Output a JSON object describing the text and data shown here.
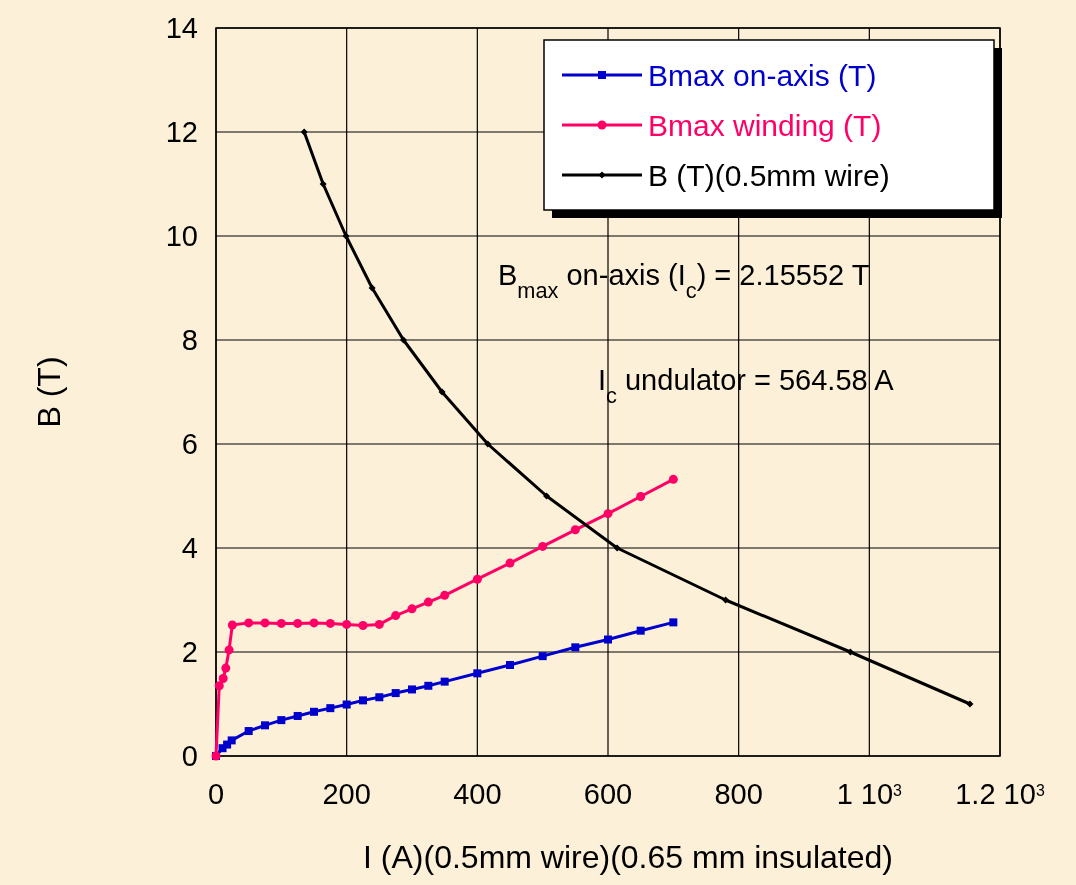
{
  "chart_data": {
    "type": "line",
    "xlabel": "I (A)(0.5mm wire)(0.65 mm insulated)",
    "ylabel": "B (T)",
    "xlim": [
      0,
      1200
    ],
    "ylim": [
      0,
      14
    ],
    "xticks": [
      0,
      200,
      400,
      600,
      800,
      {
        "value": 1000,
        "label": "1 10$^{3}$"
      },
      {
        "value": 1200,
        "label": "1.2 10$^{3}$"
      }
    ],
    "yticks": [
      0,
      2,
      4,
      6,
      8,
      10,
      12,
      14
    ],
    "grid": true,
    "legend": "top right",
    "annotations": [
      "B$_{max}$ on-axis (I$_{c}$) = 2.15552 T",
      "I$_{c}$ undulator = 564.58 A"
    ],
    "series": [
      {
        "name": "Bmax on-axis (T)",
        "color": "#0000cc",
        "marker": "square",
        "x": [
          0,
          10,
          17,
          24,
          50,
          75,
          100,
          125,
          150,
          175,
          200,
          225,
          250,
          275,
          300,
          325,
          350,
          400,
          450,
          500,
          550,
          600,
          650,
          700
        ],
        "values": [
          0,
          0.15,
          0.22,
          0.3,
          0.48,
          0.59,
          0.69,
          0.77,
          0.85,
          0.92,
          0.99,
          1.07,
          1.13,
          1.21,
          1.28,
          1.35,
          1.43,
          1.59,
          1.75,
          1.92,
          2.09,
          2.24,
          2.41,
          2.57
        ]
      },
      {
        "name": "Bmax winding (T)",
        "color": "#ff0066",
        "marker": "circle",
        "x": [
          0,
          5,
          11,
          15,
          20,
          25,
          50,
          75,
          100,
          125,
          150,
          175,
          200,
          225,
          250,
          275,
          300,
          325,
          350,
          400,
          450,
          500,
          550,
          600,
          650,
          700
        ],
        "values": [
          0,
          1.35,
          1.49,
          1.69,
          2.04,
          2.52,
          2.56,
          2.56,
          2.55,
          2.55,
          2.56,
          2.55,
          2.53,
          2.51,
          2.53,
          2.7,
          2.83,
          2.96,
          3.09,
          3.4,
          3.71,
          4.03,
          4.35,
          4.66,
          4.99,
          5.32
        ]
      },
      {
        "name": "B (T)(0.5mm wire)",
        "color": "#000000",
        "marker": "diamond",
        "x": [
          135,
          164,
          199,
          239,
          287,
          346,
          416,
          506,
          614,
          780,
          971,
          1154
        ],
        "values": [
          12,
          11,
          10,
          9,
          8,
          7,
          6,
          5,
          4,
          3,
          2,
          1
        ]
      }
    ]
  }
}
